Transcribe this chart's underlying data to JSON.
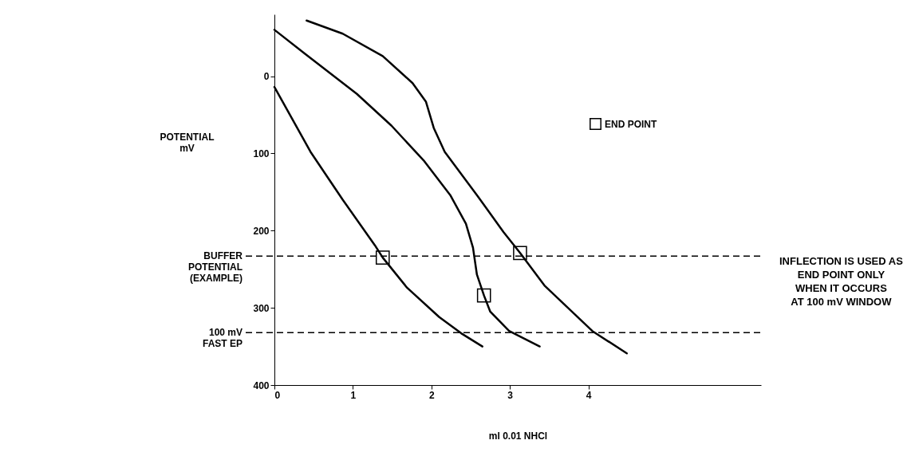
{
  "chart_data": {
    "type": "line",
    "xlabel": "ml 0.01 NHCl",
    "ylabel": "POTENTIAL\nmV",
    "xlim": [
      0,
      6.2
    ],
    "ylim": [
      400,
      -80
    ],
    "xticks": [
      0,
      1,
      2,
      3,
      4
    ],
    "yticks": [
      0,
      100,
      200,
      300,
      400
    ],
    "grid": false,
    "legend": "top right",
    "line_style": "solid",
    "marker": "none",
    "series": [
      {
        "color": "#000000",
        "x": [
          0,
          0.46,
          0.87,
          1.28,
          1.38,
          1.69,
          2.1,
          2.38,
          2.65
        ],
        "values": [
          14,
          98,
          160,
          219,
          235,
          274,
          312,
          333,
          350
        ]
      },
      {
        "color": "#000000",
        "x": [
          0,
          0.39,
          1.05,
          1.49,
          1.9,
          2.24,
          2.44,
          2.53,
          2.58,
          2.67,
          2.75,
          2.99,
          3.38
        ],
        "values": [
          -60,
          -29,
          23,
          64,
          109,
          154,
          191,
          222,
          257,
          284,
          305,
          330,
          350
        ]
      },
      {
        "color": "#000000",
        "x": [
          0.41,
          0.87,
          1.38,
          1.76,
          1.93,
          2.03,
          2.17,
          2.58,
          2.92,
          3.13,
          3.44,
          4.05,
          4.49
        ],
        "values": [
          -72,
          -55,
          -26,
          9,
          33,
          67,
          98,
          154,
          202,
          229,
          271,
          330,
          359
        ]
      },
      {
        "type": "scatter",
        "name": "END POINT",
        "color": "#000000",
        "marker": "square",
        "x": [
          1.38,
          2.67,
          3.13
        ],
        "values": [
          235,
          284,
          229
        ]
      }
    ],
    "ref_lines": [
      {
        "axis": "y",
        "value": 233,
        "label": "BUFFER\nPOTENTIAL\n(EXAMPLE)",
        "line_style": "dashed",
        "color": "#000000"
      },
      {
        "axis": "y",
        "value": 332,
        "label": "100 mV\nFAST EP",
        "line_style": "dashed",
        "color": "#000000"
      }
    ],
    "annotations": [
      "INFLECTION IS USED AS\nEND POINT ONLY\nWHEN IT OCCURS\nAT 100 mV WINDOW"
    ]
  }
}
